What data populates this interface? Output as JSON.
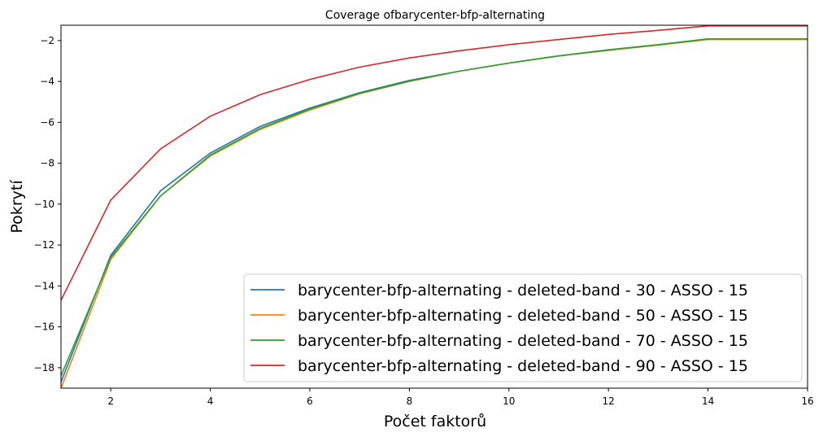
{
  "chart_data": {
    "type": "line",
    "title": "Coverage ofbarycenter-bfp-alternating",
    "xlabel": "Počet faktorů",
    "ylabel": "Pokrytí",
    "xlim": [
      1,
      16
    ],
    "ylim": [
      -19,
      -1.25
    ],
    "xticks": [
      2,
      4,
      6,
      8,
      10,
      12,
      14,
      16
    ],
    "yticks": [
      -18,
      -16,
      -14,
      -12,
      -10,
      -8,
      -6,
      -4,
      -2
    ],
    "legend_position": "lower-right",
    "x": [
      1,
      2,
      3,
      4,
      5,
      6,
      7,
      8,
      9,
      10,
      11,
      12,
      13,
      14,
      15,
      16
    ],
    "series": [
      {
        "name": "barycenter-bfp-alternating - deleted-band - 30 - ASSO - 15",
        "color": "#1f77b4",
        "values": [
          -18.7,
          -12.5,
          -9.35,
          -7.5,
          -6.2,
          -5.3,
          -4.55,
          -3.95,
          -3.5,
          -3.1,
          -2.75,
          -2.45,
          -2.2,
          -1.92,
          -1.92,
          -1.92
        ]
      },
      {
        "name": "barycenter-bfp-alternating - deleted-band - 50 - ASSO - 15",
        "color": "#ff7f0e",
        "values": [
          -19.0,
          -12.7,
          -9.6,
          -7.65,
          -6.35,
          -5.4,
          -4.6,
          -4.0,
          -3.5,
          -3.1,
          -2.75,
          -2.48,
          -2.22,
          -1.95,
          -1.95,
          -1.95
        ]
      },
      {
        "name": "barycenter-bfp-alternating - deleted-band - 70 - ASSO - 15",
        "color": "#2ca02c",
        "values": [
          -18.4,
          -12.6,
          -9.6,
          -7.6,
          -6.3,
          -5.35,
          -4.58,
          -3.98,
          -3.5,
          -3.1,
          -2.75,
          -2.46,
          -2.2,
          -1.92,
          -1.92,
          -1.92
        ]
      },
      {
        "name": "barycenter-bfp-alternating - deleted-band - 90 - ASSO - 15",
        "color": "#d62728",
        "values": [
          -14.7,
          -9.8,
          -7.3,
          -5.7,
          -4.65,
          -3.9,
          -3.3,
          -2.85,
          -2.5,
          -2.2,
          -1.95,
          -1.7,
          -1.5,
          -1.28,
          -1.28,
          -1.28
        ]
      }
    ]
  }
}
